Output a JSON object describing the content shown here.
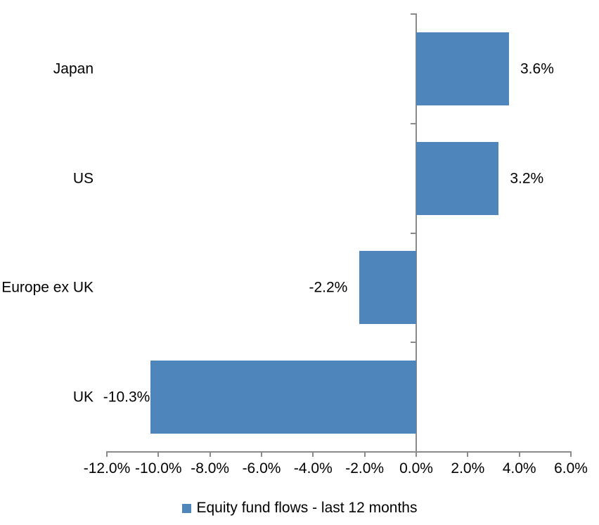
{
  "chart_data": {
    "type": "bar",
    "orientation": "horizontal",
    "title": "",
    "categories": [
      "Japan",
      "US",
      "Europe ex UK",
      "UK"
    ],
    "series": [
      {
        "name": "Equity fund flows - last 12 months",
        "values": [
          3.6,
          3.2,
          -2.2,
          -10.3
        ],
        "value_labels": [
          "3.6%",
          "3.2%",
          "-2.2%",
          "-10.3%"
        ],
        "color": "#4E86BC"
      }
    ],
    "x_axis": {
      "min": -12,
      "max": 6,
      "step": 2,
      "tick_values": [
        -12,
        -10,
        -8,
        -6,
        -4,
        -2,
        0,
        2,
        4,
        6
      ],
      "tick_labels": [
        "-12.0%",
        "-10.0%",
        "-8.0%",
        "-6.0%",
        "-4.0%",
        "-2.0%",
        "0.0%",
        "2.0%",
        "4.0%",
        "6.0%"
      ]
    },
    "legend": {
      "position": "bottom"
    },
    "colors": {
      "bar": "#4E86BC",
      "axis": "#8A8A8A",
      "text": "#000000",
      "background": "#FFFFFF"
    },
    "grid": false,
    "value_label_position": "outside-end"
  }
}
